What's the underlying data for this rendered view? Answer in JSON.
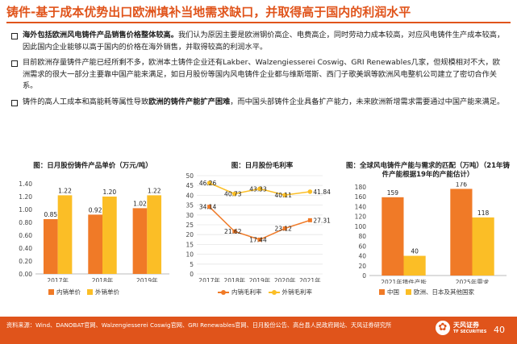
{
  "header": {
    "title": "铸件-基于成本优势出口欧洲填补当地需求缺口，并取得高于国内的利润水平"
  },
  "bullets": [
    {
      "bold": "海外包括欧洲风电铸件产品销售价格整体较高。",
      "text": "我们认为原因主要是欧洲钢价高企、电费高企，同时劳动力成本较高，对应风电铸件生产成本较高，因此国内企业能够以高于国内的价格在海外销售，并取得较高的利润水平。"
    },
    {
      "pre": "目前欧洲存量铸件产能已经所剩不多，欧洲本土铸件企业还有Lakber、Walzengiesserei Coswig、GRI Renewables几家，但规模相对不大，欧洲需求的很大一部分主要靠中国产能来满足，如日月股份等国内风电铸件企业都与维斯塔斯、西门子歌美飒等欧洲风电整机公司建立了密切合作关系。"
    },
    {
      "pre": "铸件的高人工成本和高能耗等属性导致",
      "bold": "欧洲的铸件产能扩产困难",
      "post": "，而中国头部铸件企业具备扩产能力，未来欧洲新增需求需要通过中国产能来满足。"
    }
  ],
  "chart_data": [
    {
      "type": "bar",
      "title": "图：日月股份铸件产品单价（万元/吨）",
      "categories": [
        "2017年",
        "2018年",
        "2019年"
      ],
      "series": [
        {
          "name": "内销单价",
          "values": [
            0.85,
            0.92,
            1.02
          ]
        },
        {
          "name": "外销单价",
          "values": [
            1.22,
            1.2,
            1.22
          ]
        }
      ],
      "yticks": [
        "0.00",
        "0.20",
        "0.40",
        "0.60",
        "0.80",
        "1.00",
        "1.20",
        "1.40"
      ],
      "ylim": [
        0,
        1.4
      ],
      "colors": [
        "#F07A27",
        "#FBBE26"
      ],
      "legend": "bottom"
    },
    {
      "type": "line",
      "title": "图：日月股份毛利率",
      "categories": [
        "2017年",
        "2018年",
        "2019年",
        "2020年",
        "2021年"
      ],
      "series": [
        {
          "name": "内销毛利率",
          "values": [
            34.14,
            21.62,
            17.44,
            23.12,
            27.31
          ]
        },
        {
          "name": "外销毛利率",
          "values": [
            46.26,
            40.73,
            43.33,
            40.11,
            41.84
          ]
        }
      ],
      "yticks": [
        "0",
        "5",
        "10",
        "15",
        "20",
        "25",
        "30",
        "35",
        "40",
        "45",
        "50"
      ],
      "ylim": [
        0,
        50
      ],
      "colors": [
        "#F07A27",
        "#FBBE26"
      ],
      "legend": "bottom"
    },
    {
      "type": "bar",
      "title": "图：全球风电铸件产能与需求的匹配（万吨）（21年铸件产能根据19年的产能估计）",
      "categories": [
        "2021年铸件产能",
        "2025年需求"
      ],
      "series": [
        {
          "name": "中国",
          "values": [
            159,
            176
          ]
        },
        {
          "name": "欧洲、日本及其他国家",
          "values": [
            40,
            118
          ]
        }
      ],
      "yticks": [
        "0",
        "20",
        "40",
        "60",
        "80",
        "100",
        "120",
        "140",
        "160",
        "180"
      ],
      "ylim": [
        0,
        180
      ],
      "colors": [
        "#F07A27",
        "#FBBE26"
      ],
      "legend": "bottom"
    }
  ],
  "footer": {
    "source": "资料来源：Wind、DANOBAT官网、Walzengiesserei Coswig官网、GRI Renewables官网、日月股份公告、高台县人民政府网站、天风证券研究所",
    "logo_name": "天风证券",
    "logo_sub": "TF SECURITIES",
    "page_number": "40"
  }
}
